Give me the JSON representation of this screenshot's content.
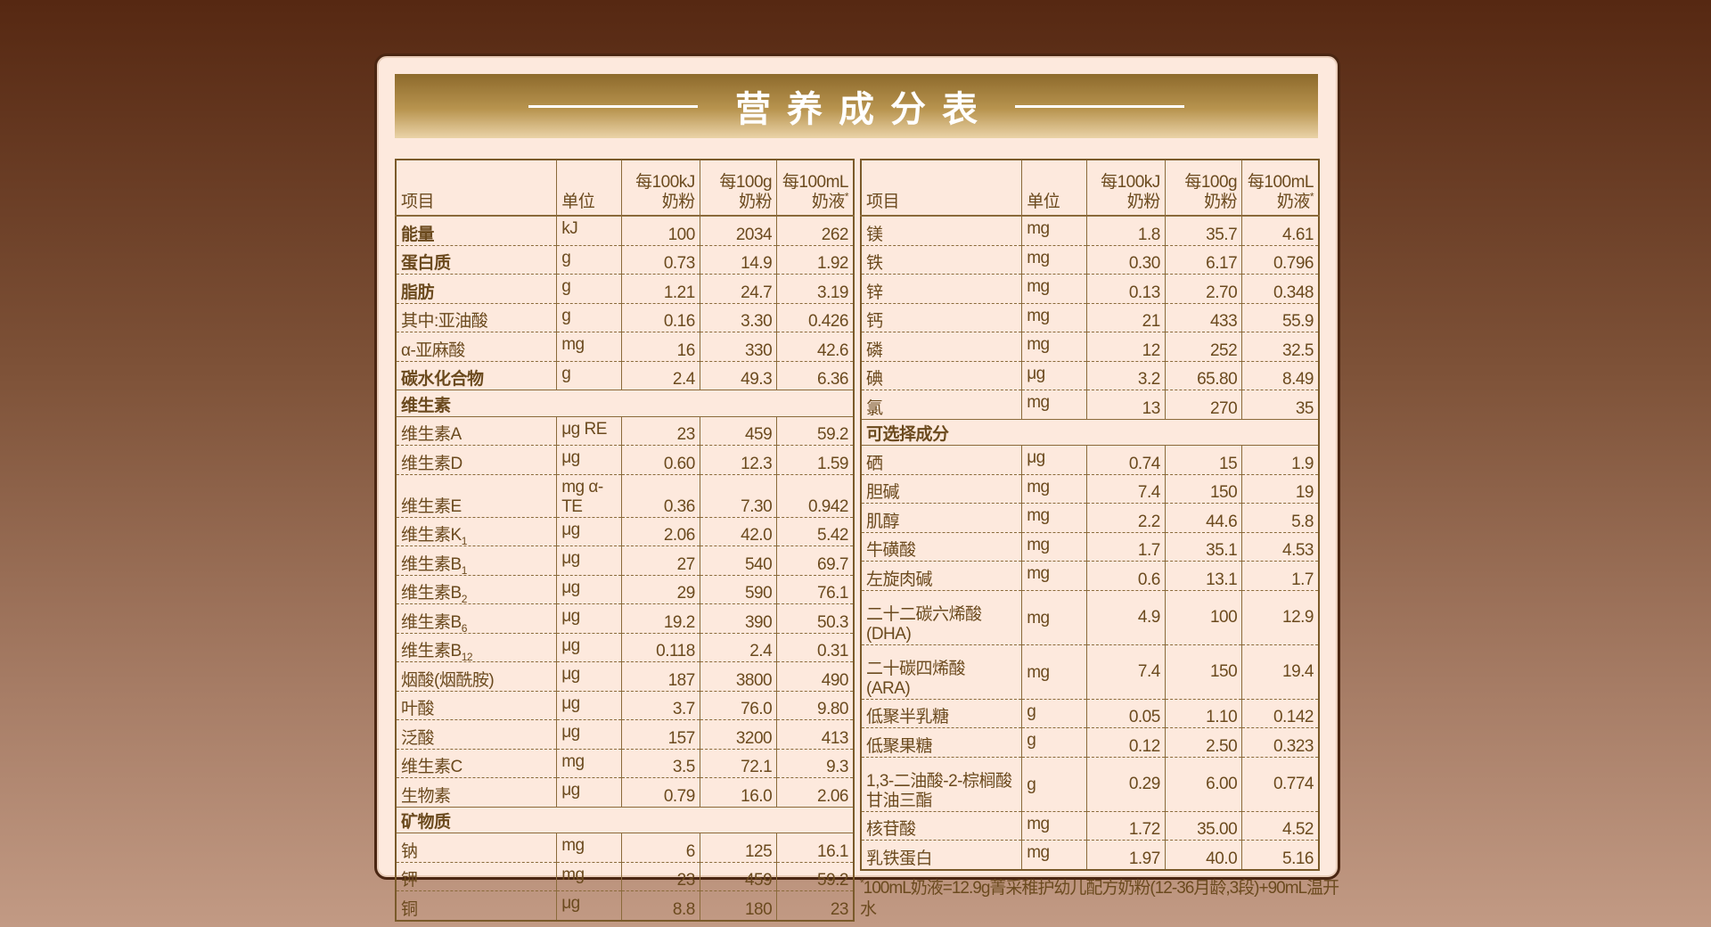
{
  "title": "营养成分表",
  "header": {
    "item": "项目",
    "unit": "单位",
    "c1a": "每100kJ",
    "c1b": "奶粉",
    "c2a": "每100g",
    "c2b": "奶粉",
    "c3a": "每100mL",
    "c3b": "奶液",
    "c3mark": "*"
  },
  "left": [
    {
      "n": "能量",
      "u": "kJ",
      "v": [
        "100",
        "2034",
        "262"
      ],
      "bold": true
    },
    {
      "n": "蛋白质",
      "u": "g",
      "v": [
        "0.73",
        "14.9",
        "1.92"
      ],
      "bold": true
    },
    {
      "n": "脂肪",
      "u": "g",
      "v": [
        "1.21",
        "24.7",
        "3.19"
      ],
      "bold": true
    },
    {
      "n": "其中:亚油酸",
      "u": "g",
      "v": [
        "0.16",
        "3.30",
        "0.426"
      ]
    },
    {
      "n": "α-亚麻酸",
      "u": "mg",
      "v": [
        "16",
        "330",
        "42.6"
      ]
    },
    {
      "n": "碳水化合物",
      "u": "g",
      "v": [
        "2.4",
        "49.3",
        "6.36"
      ],
      "bold": true
    },
    {
      "section": "维生素"
    },
    {
      "n": "维生素A",
      "u": "μg RE",
      "v": [
        "23",
        "459",
        "59.2"
      ]
    },
    {
      "n": "维生素D",
      "u": "μg",
      "v": [
        "0.60",
        "12.3",
        "1.59"
      ]
    },
    {
      "n": "维生素E",
      "u": "mg α-TE",
      "v": [
        "0.36",
        "7.30",
        "0.942"
      ]
    },
    {
      "n": "维生素K",
      "s": "1",
      "u": "μg",
      "v": [
        "2.06",
        "42.0",
        "5.42"
      ]
    },
    {
      "n": "维生素B",
      "s": "1",
      "u": "μg",
      "v": [
        "27",
        "540",
        "69.7"
      ]
    },
    {
      "n": "维生素B",
      "s": "2",
      "u": "μg",
      "v": [
        "29",
        "590",
        "76.1"
      ]
    },
    {
      "n": "维生素B",
      "s": "6",
      "u": "μg",
      "v": [
        "19.2",
        "390",
        "50.3"
      ]
    },
    {
      "n": "维生素B",
      "s": "12",
      "u": "μg",
      "v": [
        "0.118",
        "2.4",
        "0.31"
      ]
    },
    {
      "n": "烟酸(烟酰胺)",
      "u": "μg",
      "v": [
        "187",
        "3800",
        "490"
      ]
    },
    {
      "n": "叶酸",
      "u": "μg",
      "v": [
        "3.7",
        "76.0",
        "9.80"
      ]
    },
    {
      "n": "泛酸",
      "u": "μg",
      "v": [
        "157",
        "3200",
        "413"
      ]
    },
    {
      "n": "维生素C",
      "u": "mg",
      "v": [
        "3.5",
        "72.1",
        "9.3"
      ]
    },
    {
      "n": "生物素",
      "u": "μg",
      "v": [
        "0.79",
        "16.0",
        "2.06"
      ]
    },
    {
      "section": "矿物质"
    },
    {
      "n": "钠",
      "u": "mg",
      "v": [
        "6",
        "125",
        "16.1"
      ]
    },
    {
      "n": "钾",
      "u": "mg",
      "v": [
        "23",
        "459",
        "59.2"
      ]
    },
    {
      "n": "铜",
      "u": "μg",
      "v": [
        "8.8",
        "180",
        "23"
      ]
    }
  ],
  "right": [
    {
      "n": "镁",
      "u": "mg",
      "v": [
        "1.8",
        "35.7",
        "4.61"
      ]
    },
    {
      "n": "铁",
      "u": "mg",
      "v": [
        "0.30",
        "6.17",
        "0.796"
      ]
    },
    {
      "n": "锌",
      "u": "mg",
      "v": [
        "0.13",
        "2.70",
        "0.348"
      ]
    },
    {
      "n": "钙",
      "u": "mg",
      "v": [
        "21",
        "433",
        "55.9"
      ]
    },
    {
      "n": "磷",
      "u": "mg",
      "v": [
        "12",
        "252",
        "32.5"
      ]
    },
    {
      "n": "碘",
      "u": "μg",
      "v": [
        "3.2",
        "65.80",
        "8.49"
      ]
    },
    {
      "n": "氯",
      "u": "mg",
      "v": [
        "13",
        "270",
        "35"
      ]
    },
    {
      "section": "可选择成分"
    },
    {
      "n": "硒",
      "u": "μg",
      "v": [
        "0.74",
        "15",
        "1.9"
      ]
    },
    {
      "n": "胆碱",
      "u": "mg",
      "v": [
        "7.4",
        "150",
        "19"
      ]
    },
    {
      "n": "肌醇",
      "u": "mg",
      "v": [
        "2.2",
        "44.6",
        "5.8"
      ]
    },
    {
      "n": "牛磺酸",
      "u": "mg",
      "v": [
        "1.7",
        "35.1",
        "4.53"
      ]
    },
    {
      "n": "左旋肉碱",
      "u": "mg",
      "v": [
        "0.6",
        "13.1",
        "1.7"
      ]
    },
    {
      "n": "二十二碳六烯酸",
      "n2": "(DHA)",
      "u": "mg",
      "v": [
        "4.9",
        "100",
        "12.9"
      ]
    },
    {
      "n": "二十碳四烯酸",
      "n2": "(ARA)",
      "u": "mg",
      "v": [
        "7.4",
        "150",
        "19.4"
      ]
    },
    {
      "n": "低聚半乳糖",
      "u": "g",
      "v": [
        "0.05",
        "1.10",
        "0.142"
      ]
    },
    {
      "n": "低聚果糖",
      "u": "g",
      "v": [
        "0.12",
        "2.50",
        "0.323"
      ]
    },
    {
      "n": "1,3-二油酸-2-棕榈酸",
      "n2": "甘油三酯",
      "u": "g",
      "v": [
        "0.29",
        "6.00",
        "0.774"
      ]
    },
    {
      "n": "核苷酸",
      "u": "mg",
      "v": [
        "1.72",
        "35.00",
        "4.52"
      ]
    },
    {
      "n": "乳铁蛋白",
      "u": "mg",
      "v": [
        "1.97",
        "40.0",
        "5.16"
      ]
    }
  ],
  "footnote": {
    "mark": "*",
    "text": "100mL奶液=12.9g菁采稚护幼儿配方奶粉(12-36月龄,3段)+90mL温开水"
  }
}
